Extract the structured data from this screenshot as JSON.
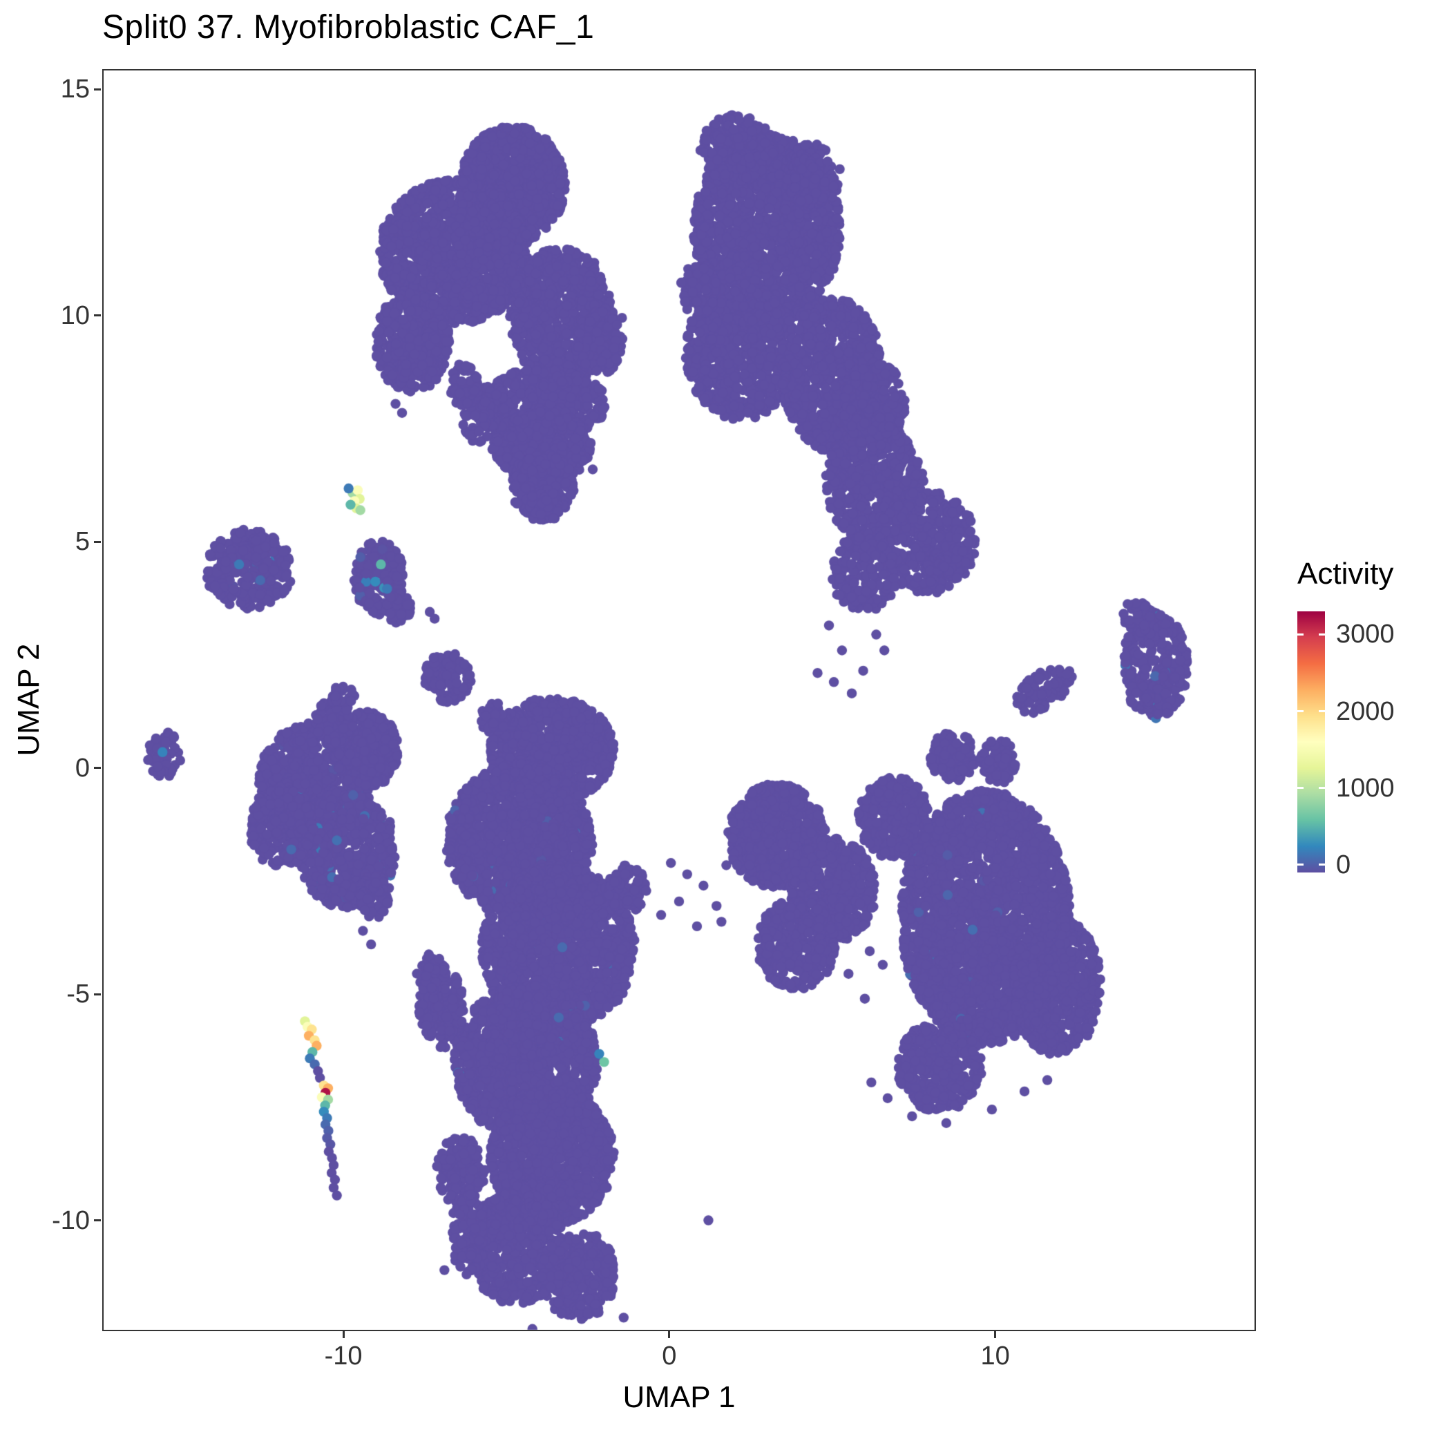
{
  "chart_data": {
    "type": "scatter",
    "title": "Split0 37. Myofibroblastic CAF_1",
    "xlabel": "UMAP 1",
    "ylabel": "UMAP 2",
    "color_by": "Activity",
    "axes": {
      "xlim": [
        -17.4,
        18.0
      ],
      "ylim": [
        -12.45,
        15.45
      ],
      "x_ticks": [
        -10,
        0,
        10
      ],
      "y_ticks": [
        -10,
        -5,
        0,
        5,
        10,
        15
      ],
      "grid": false
    },
    "legend": {
      "title": "Activity",
      "ticks": [
        0,
        1000,
        2000,
        3000
      ],
      "bar_domain": [
        -100,
        3300
      ],
      "position": "right"
    },
    "colors": {
      "background": "#ffffff",
      "panel_border": "#333333",
      "text": "#000000",
      "tick_text": "#333333",
      "zero_activity": "#5E4FA2",
      "palette_spectral_reversed": [
        "#5E4FA2",
        "#3288BD",
        "#66C2A5",
        "#ABDDA4",
        "#E6F598",
        "#FFFFBF",
        "#FEE08B",
        "#FDAE61",
        "#F46D43",
        "#D53E4F",
        "#9E0142"
      ]
    },
    "activity_max": 3300,
    "clusters": [
      {
        "c": [
          -4.8,
          12.9
        ],
        "r": [
          1.6,
          1.3
        ],
        "n": 850
      },
      {
        "c": [
          -6.6,
          11.4
        ],
        "r": [
          2.3,
          1.6
        ],
        "n": 1250
      },
      {
        "c": [
          -7.9,
          9.4
        ],
        "r": [
          1.15,
          1.1
        ],
        "n": 400
      },
      {
        "c": [
          -3.3,
          10.0
        ],
        "r": [
          1.6,
          1.5
        ],
        "n": 800
      },
      {
        "c": [
          -3.9,
          8.05
        ],
        "r": [
          2.0,
          0.78
        ],
        "n": 500
      },
      {
        "c": [
          -3.9,
          7.1
        ],
        "r": [
          1.55,
          0.78
        ],
        "n": 400
      },
      {
        "c": [
          -3.9,
          6.25
        ],
        "r": [
          1.0,
          0.7
        ],
        "n": 230
      },
      {
        "c": [
          -3.85,
          5.78
        ],
        "r": [
          0.45,
          0.4
        ],
        "n": 60
      },
      {
        "c": [
          -2.15,
          9.4
        ],
        "r": [
          0.75,
          0.7
        ],
        "n": 130
      },
      {
        "c": [
          -5.85,
          7.7
        ],
        "r": [
          0.55,
          0.5
        ],
        "n": 70
      },
      {
        "c": [
          -6.3,
          8.45
        ],
        "r": [
          0.45,
          0.5
        ],
        "n": 55
      },
      {
        "c": [
          3.0,
          11.9
        ],
        "r": [
          2.25,
          2.1
        ],
        "n": 1500
      },
      {
        "c": [
          2.1,
          13.7
        ],
        "r": [
          1.15,
          0.75
        ],
        "n": 240
      },
      {
        "c": [
          4.4,
          13.1
        ],
        "r": [
          0.85,
          0.7
        ],
        "n": 150
      },
      {
        "c": [
          2.2,
          9.2
        ],
        "r": [
          1.7,
          1.5
        ],
        "n": 750
      },
      {
        "c": [
          5.0,
          8.7
        ],
        "r": [
          1.55,
          1.7
        ],
        "n": 750
      },
      {
        "c": [
          6.3,
          6.3
        ],
        "r": [
          1.5,
          1.3
        ],
        "n": 520
      },
      {
        "c": [
          7.9,
          5.0
        ],
        "r": [
          1.5,
          1.15
        ],
        "n": 420
      },
      {
        "c": [
          6.0,
          4.3
        ],
        "r": [
          1.0,
          0.9
        ],
        "n": 180
      },
      {
        "c": [
          0.9,
          10.6
        ],
        "r": [
          0.55,
          0.6
        ],
        "n": 90
      },
      {
        "c": [
          6.3,
          8.0
        ],
        "r": [
          0.95,
          1.0
        ],
        "n": 260
      },
      {
        "c": [
          14.9,
          2.3
        ],
        "r": [
          1.0,
          1.25
        ],
        "n": 280,
        "noise": [
          0.03,
          250
        ]
      },
      {
        "c": [
          14.35,
          3.35
        ],
        "r": [
          0.42,
          0.38
        ],
        "n": 35
      },
      {
        "c": [
          11.5,
          1.75
        ],
        "r": [
          0.95,
          0.42
        ],
        "n": 70,
        "rot": 25
      },
      {
        "c": [
          -12.9,
          4.4
        ],
        "r": [
          1.35,
          0.88
        ],
        "n": 310,
        "noise": [
          0.05,
          250
        ]
      },
      {
        "c": [
          -8.9,
          4.2
        ],
        "r": [
          0.78,
          0.82
        ],
        "n": 170,
        "noise": [
          0.06,
          400
        ]
      },
      {
        "c": [
          -8.3,
          3.55
        ],
        "r": [
          0.4,
          0.35
        ],
        "n": 35
      },
      {
        "c": [
          -6.8,
          2.0
        ],
        "r": [
          0.72,
          0.55
        ],
        "n": 110
      },
      {
        "c": [
          -15.5,
          0.3
        ],
        "r": [
          0.55,
          0.5
        ],
        "n": 48
      },
      {
        "c": [
          -10.9,
          -0.3
        ],
        "r": [
          1.7,
          1.3
        ],
        "n": 720,
        "noise": [
          0.04,
          250
        ]
      },
      {
        "c": [
          -9.9,
          -1.8
        ],
        "r": [
          1.5,
          1.3
        ],
        "n": 600,
        "noise": [
          0.04,
          250
        ]
      },
      {
        "c": [
          -11.9,
          -1.3
        ],
        "r": [
          1.0,
          0.9
        ],
        "n": 260
      },
      {
        "c": [
          -9.3,
          0.4
        ],
        "r": [
          1.0,
          0.85
        ],
        "n": 260
      },
      {
        "c": [
          -9.0,
          -2.9
        ],
        "r": [
          0.5,
          0.45
        ],
        "n": 60
      },
      {
        "c": [
          -10.3,
          1.0
        ],
        "r": [
          0.6,
          0.5
        ],
        "n": 100
      },
      {
        "c": [
          -10.0,
          1.55
        ],
        "r": [
          0.35,
          0.3
        ],
        "n": 30
      },
      {
        "c": [
          -3.6,
          0.4
        ],
        "r": [
          1.9,
          1.15
        ],
        "n": 800
      },
      {
        "c": [
          -5.4,
          1.1
        ],
        "r": [
          0.4,
          0.35
        ],
        "n": 40
      },
      {
        "c": [
          -4.6,
          -1.6
        ],
        "r": [
          2.25,
          1.7
        ],
        "n": 1400,
        "noise": [
          0.02,
          200
        ]
      },
      {
        "c": [
          -3.4,
          -4.0
        ],
        "r": [
          2.35,
          1.85
        ],
        "n": 1500,
        "noise": [
          0.02,
          200
        ]
      },
      {
        "c": [
          -4.4,
          -6.5
        ],
        "r": [
          2.2,
          1.7
        ],
        "n": 1300,
        "noise": [
          0.02,
          200
        ]
      },
      {
        "c": [
          -3.6,
          -8.6
        ],
        "r": [
          1.9,
          1.5
        ],
        "n": 900
      },
      {
        "c": [
          -4.7,
          -10.6
        ],
        "r": [
          1.5,
          1.25
        ],
        "n": 500
      },
      {
        "c": [
          -2.8,
          -11.2
        ],
        "r": [
          1.15,
          1.0
        ],
        "n": 300
      },
      {
        "c": [
          -7.0,
          -5.3
        ],
        "r": [
          0.7,
          0.9
        ],
        "n": 150
      },
      {
        "c": [
          -6.4,
          -8.9
        ],
        "r": [
          0.75,
          0.75
        ],
        "n": 130
      },
      {
        "c": [
          -6.2,
          -10.3
        ],
        "r": [
          0.5,
          0.9
        ],
        "n": 90
      },
      {
        "c": [
          -1.3,
          -2.7
        ],
        "r": [
          0.6,
          0.55
        ],
        "n": 80
      },
      {
        "c": [
          -7.3,
          -4.6
        ],
        "r": [
          0.45,
          0.5
        ],
        "n": 50
      },
      {
        "c": [
          3.3,
          -1.5
        ],
        "r": [
          1.5,
          1.15
        ],
        "n": 550
      },
      {
        "c": [
          5.0,
          -2.7
        ],
        "r": [
          1.35,
          1.15
        ],
        "n": 430
      },
      {
        "c": [
          3.9,
          -3.9
        ],
        "r": [
          1.2,
          1.0
        ],
        "n": 340
      },
      {
        "c": [
          9.7,
          -3.3
        ],
        "r": [
          2.6,
          2.8
        ],
        "n": 2600,
        "noise": [
          0.015,
          200
        ]
      },
      {
        "c": [
          11.9,
          -4.8
        ],
        "r": [
          1.35,
          1.55
        ],
        "n": 600
      },
      {
        "c": [
          8.3,
          -6.6
        ],
        "r": [
          1.3,
          1.0
        ],
        "n": 350
      },
      {
        "c": [
          6.9,
          -1.1
        ],
        "r": [
          1.1,
          0.9
        ],
        "n": 300
      },
      {
        "c": [
          8.7,
          0.25
        ],
        "r": [
          0.7,
          0.55
        ],
        "n": 120
      },
      {
        "c": [
          10.1,
          0.15
        ],
        "r": [
          0.55,
          0.5
        ],
        "n": 90
      }
    ],
    "highlight_points": [
      [
        -11.18,
        -5.6,
        1300
      ],
      [
        -11.1,
        -5.72,
        1600
      ],
      [
        -10.97,
        -5.78,
        1950
      ],
      [
        -11.06,
        -5.92,
        2300
      ],
      [
        -10.88,
        -6.02,
        1950
      ],
      [
        -10.82,
        -6.14,
        2300
      ],
      [
        -10.95,
        -6.28,
        600
      ],
      [
        -11.03,
        -6.42,
        250
      ],
      [
        -10.88,
        -6.55,
        150
      ],
      [
        -10.78,
        -6.7,
        0
      ],
      [
        -10.72,
        -6.85,
        0
      ],
      [
        -10.6,
        -7.02,
        1950
      ],
      [
        -10.47,
        -7.08,
        2300
      ],
      [
        -10.55,
        -7.18,
        3200
      ],
      [
        -10.66,
        -7.28,
        1600
      ],
      [
        -10.47,
        -7.33,
        950
      ],
      [
        -10.56,
        -7.46,
        600
      ],
      [
        -10.6,
        -7.6,
        350
      ],
      [
        -10.5,
        -7.74,
        250
      ],
      [
        -10.55,
        -7.88,
        150
      ],
      [
        -10.46,
        -8.02,
        100
      ],
      [
        -10.5,
        -8.18,
        60
      ],
      [
        -10.4,
        -8.32,
        40
      ],
      [
        -10.45,
        -8.48,
        0
      ],
      [
        -10.35,
        -8.62,
        0
      ],
      [
        -10.3,
        -8.78,
        0
      ],
      [
        -10.36,
        -8.95,
        0
      ],
      [
        -10.26,
        -9.1,
        0
      ],
      [
        -10.3,
        -9.28,
        0
      ],
      [
        -10.2,
        -9.45,
        0
      ],
      [
        -9.72,
        6.08,
        950
      ],
      [
        -9.56,
        6.14,
        1600
      ],
      [
        -9.5,
        5.95,
        1300
      ],
      [
        -9.66,
        5.9,
        1600
      ],
      [
        -9.6,
        5.74,
        1300
      ],
      [
        -9.48,
        5.7,
        950
      ],
      [
        -9.78,
        5.82,
        600
      ],
      [
        -9.84,
        6.18,
        250
      ],
      [
        -8.85,
        4.5,
        600
      ],
      [
        -9.02,
        4.12,
        350
      ],
      [
        -8.66,
        3.96,
        250
      ],
      [
        -2.0,
        -6.5,
        700
      ],
      [
        -2.15,
        -6.32,
        300
      ],
      [
        -13.2,
        4.5,
        250
      ],
      [
        -12.55,
        4.15,
        150
      ],
      [
        -15.55,
        0.35,
        300
      ],
      [
        -10.2,
        -1.6,
        200
      ],
      [
        -11.6,
        -1.8,
        150
      ],
      [
        -9.7,
        -0.6,
        100
      ],
      [
        -1.45,
        9.95,
        0
      ],
      [
        -1.6,
        9.8,
        0
      ],
      [
        -8.4,
        8.05,
        0
      ],
      [
        -8.2,
        7.85,
        0
      ],
      [
        -2.35,
        6.6,
        0
      ],
      [
        4.9,
        3.15,
        0
      ],
      [
        5.3,
        2.6,
        0
      ],
      [
        5.95,
        2.15,
        0
      ],
      [
        6.35,
        2.95,
        0
      ],
      [
        4.55,
        2.1,
        0
      ],
      [
        5.6,
        1.65,
        0
      ],
      [
        6.6,
        2.6,
        0
      ],
      [
        5.05,
        1.9,
        0
      ],
      [
        0.05,
        -2.1,
        0
      ],
      [
        0.55,
        -2.35,
        0
      ],
      [
        1.05,
        -2.6,
        0
      ],
      [
        0.3,
        -2.95,
        0
      ],
      [
        1.45,
        -3.05,
        0
      ],
      [
        -0.25,
        -3.25,
        0
      ],
      [
        0.85,
        -3.5,
        0
      ],
      [
        1.75,
        -2.15,
        0
      ],
      [
        1.6,
        -3.4,
        0
      ],
      [
        5.85,
        -3.0,
        0
      ],
      [
        6.15,
        -4.05,
        0
      ],
      [
        5.5,
        -4.55,
        0
      ],
      [
        6.55,
        -4.35,
        0
      ],
      [
        6.0,
        -5.1,
        0
      ],
      [
        6.7,
        -7.3,
        0
      ],
      [
        7.45,
        -7.7,
        0
      ],
      [
        8.5,
        -7.85,
        0
      ],
      [
        9.9,
        -7.55,
        0
      ],
      [
        10.9,
        -7.15,
        0
      ],
      [
        6.2,
        -6.95,
        0
      ],
      [
        11.6,
        -6.9,
        0
      ],
      [
        1.2,
        -10.0,
        0
      ],
      [
        -2.6,
        -12.6,
        0
      ],
      [
        -4.2,
        -12.4,
        0
      ],
      [
        -6.9,
        -11.1,
        0
      ],
      [
        -1.4,
        -12.15,
        0
      ],
      [
        -7.35,
        3.45,
        0
      ],
      [
        -7.2,
        3.3,
        0
      ],
      [
        -9.4,
        -3.6,
        0
      ],
      [
        -9.15,
        -3.9,
        0
      ]
    ]
  }
}
